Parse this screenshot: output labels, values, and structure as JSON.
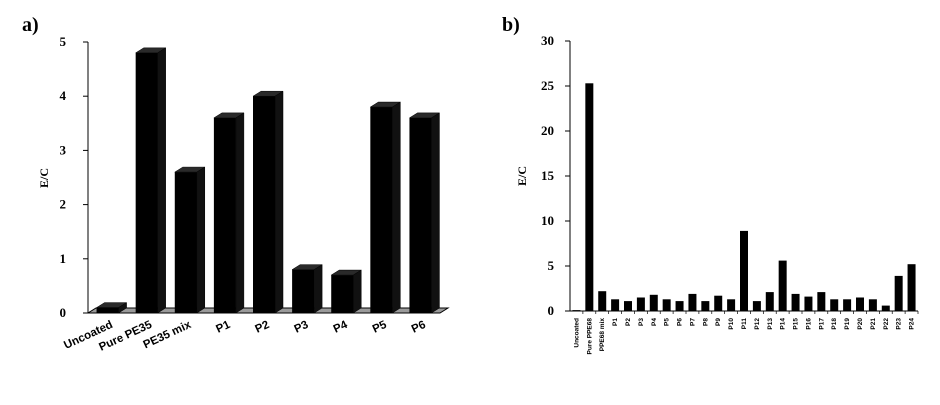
{
  "chart_data": [
    {
      "type": "bar",
      "panel_label": "a)",
      "ylabel": "E/C",
      "ylim": [
        0,
        5
      ],
      "yticks": [
        "0",
        "1",
        "2",
        "3",
        "4",
        "5"
      ],
      "categories": [
        "Uncoated",
        "Pure PE35",
        "PE35 mix",
        "P1",
        "P2",
        "P3",
        "P4",
        "P5",
        "P6"
      ],
      "values": [
        0.1,
        4.8,
        2.6,
        3.6,
        4.0,
        0.8,
        0.7,
        3.8,
        3.6
      ],
      "style": "3d-bars",
      "bar_color": "#000000",
      "floor_color": "#9a9a9a"
    },
    {
      "type": "bar",
      "panel_label": "b)",
      "ylabel": "E/C",
      "ylim": [
        0,
        30
      ],
      "yticks": [
        "0",
        "5",
        "10",
        "15",
        "20",
        "25",
        "30"
      ],
      "categories": [
        "Uncoated",
        "Pure PPE68",
        "PPE68 mix",
        "P1",
        "P2",
        "P3",
        "P4",
        "P5",
        "P6",
        "P7",
        "P8",
        "P9",
        "P10",
        "P11",
        "P12",
        "P13",
        "P14",
        "P15",
        "P16",
        "P17",
        "P18",
        "P19",
        "P20",
        "P21",
        "P22",
        "P23",
        "P24"
      ],
      "values": [
        0.1,
        25.3,
        2.2,
        1.3,
        1.1,
        1.5,
        1.8,
        1.3,
        1.1,
        1.9,
        1.1,
        1.7,
        1.3,
        8.9,
        1.1,
        2.1,
        5.6,
        1.9,
        1.6,
        2.1,
        1.3,
        1.3,
        1.5,
        1.3,
        0.6,
        3.9,
        5.2
      ],
      "bar_color": "#000000"
    }
  ]
}
